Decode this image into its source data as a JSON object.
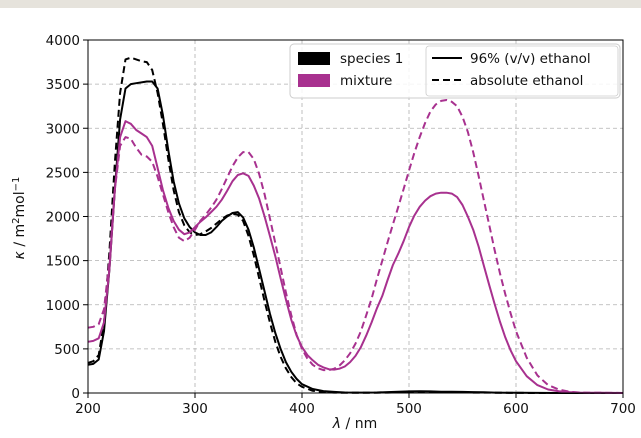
{
  "chart_data": {
    "type": "line",
    "xlabel_symbol": "λ",
    "xlabel_unit": " / nm",
    "ylabel_symbol": "κ",
    "ylabel_unit_prefix": " / m",
    "ylabel_unit_sup1": "2",
    "ylabel_unit_mid": "mol",
    "ylabel_unit_sup2": "−1",
    "xlim": [
      200,
      700
    ],
    "ylim": [
      0,
      4000
    ],
    "xticks": [
      200,
      300,
      400,
      500,
      600,
      700
    ],
    "yticks": [
      0,
      500,
      1000,
      1500,
      2000,
      2500,
      3000,
      3500,
      4000
    ],
    "grid": true,
    "legend_placement": "top-right",
    "legend": {
      "colors": [
        {
          "label": "species 1",
          "color": "#000000"
        },
        {
          "label": "mixture",
          "color": "#a8318f"
        }
      ],
      "styles": [
        {
          "label": "96% (v/v) ethanol",
          "dash": "solid"
        },
        {
          "label": "absolute ethanol",
          "dash": "dashed"
        }
      ]
    },
    "series": [
      {
        "color": "#000000",
        "dash": "solid",
        "x": [
          200,
          205,
          210,
          215,
          220,
          225,
          230,
          235,
          240,
          245,
          250,
          255,
          260,
          265,
          270,
          275,
          280,
          285,
          290,
          295,
          300,
          305,
          310,
          315,
          320,
          325,
          330,
          335,
          340,
          345,
          350,
          355,
          360,
          365,
          370,
          375,
          380,
          385,
          390,
          395,
          400,
          410,
          420,
          430,
          440,
          450,
          460,
          470,
          480,
          490,
          500,
          510,
          520,
          530,
          540,
          550,
          560,
          570,
          580,
          590,
          600,
          620,
          640,
          660,
          680,
          700
        ],
        "y": [
          320,
          330,
          380,
          700,
          1400,
          2300,
          3100,
          3450,
          3500,
          3510,
          3520,
          3530,
          3530,
          3450,
          3150,
          2750,
          2400,
          2150,
          1980,
          1880,
          1820,
          1790,
          1790,
          1820,
          1880,
          1950,
          2000,
          2040,
          2050,
          1990,
          1850,
          1650,
          1400,
          1150,
          900,
          680,
          500,
          350,
          240,
          160,
          100,
          45,
          22,
          12,
          6,
          4,
          4,
          6,
          10,
          14,
          18,
          20,
          18,
          14,
          14,
          12,
          10,
          8,
          5,
          3,
          2,
          1,
          0,
          0,
          0,
          0
        ]
      },
      {
        "color": "#000000",
        "dash": "dashed",
        "x": [
          200,
          205,
          210,
          215,
          220,
          225,
          230,
          235,
          240,
          245,
          250,
          255,
          260,
          265,
          270,
          275,
          280,
          285,
          290,
          295,
          300,
          305,
          310,
          315,
          320,
          325,
          330,
          335,
          340,
          345,
          350,
          355,
          360,
          365,
          370,
          375,
          380,
          385,
          390,
          395,
          400,
          410,
          420,
          430,
          440,
          450,
          460,
          470,
          480,
          490,
          500,
          510,
          520,
          530,
          540,
          550,
          560,
          570,
          580,
          590,
          600,
          620,
          640,
          660,
          680,
          700
        ],
        "y": [
          340,
          360,
          430,
          800,
          1600,
          2600,
          3400,
          3780,
          3800,
          3780,
          3760,
          3750,
          3660,
          3400,
          3050,
          2650,
          2300,
          2050,
          1900,
          1820,
          1790,
          1800,
          1830,
          1870,
          1920,
          1970,
          2010,
          2030,
          2020,
          1950,
          1780,
          1560,
          1300,
          1040,
          800,
          580,
          410,
          280,
          180,
          110,
          70,
          25,
          10,
          5,
          2,
          2,
          2,
          3,
          5,
          8,
          10,
          12,
          10,
          8,
          8,
          6,
          5,
          4,
          3,
          2,
          1,
          0,
          0,
          0,
          0,
          0
        ]
      },
      {
        "color": "#a8318f",
        "dash": "solid",
        "x": [
          200,
          205,
          210,
          215,
          220,
          225,
          230,
          235,
          240,
          245,
          250,
          255,
          260,
          265,
          270,
          275,
          280,
          285,
          290,
          295,
          300,
          305,
          310,
          315,
          320,
          325,
          330,
          335,
          340,
          345,
          350,
          355,
          360,
          365,
          370,
          375,
          380,
          385,
          390,
          395,
          400,
          405,
          410,
          415,
          420,
          425,
          430,
          435,
          440,
          445,
          450,
          455,
          460,
          465,
          470,
          475,
          480,
          485,
          490,
          495,
          500,
          505,
          510,
          515,
          520,
          525,
          530,
          535,
          540,
          545,
          550,
          555,
          560,
          565,
          570,
          575,
          580,
          585,
          590,
          595,
          600,
          610,
          620,
          630,
          640,
          650,
          660,
          680,
          700
        ],
        "y": [
          580,
          590,
          620,
          800,
          1400,
          2300,
          2900,
          3080,
          3050,
          2980,
          2940,
          2900,
          2800,
          2550,
          2300,
          2100,
          1950,
          1850,
          1800,
          1820,
          1880,
          1940,
          1990,
          2050,
          2110,
          2190,
          2290,
          2400,
          2470,
          2490,
          2460,
          2350,
          2200,
          2000,
          1780,
          1550,
          1300,
          1060,
          830,
          650,
          520,
          430,
          370,
          320,
          290,
          270,
          265,
          275,
          300,
          350,
          420,
          520,
          650,
          800,
          960,
          1100,
          1280,
          1450,
          1580,
          1720,
          1880,
          2010,
          2110,
          2180,
          2230,
          2260,
          2270,
          2270,
          2260,
          2220,
          2130,
          2000,
          1850,
          1660,
          1440,
          1220,
          1010,
          810,
          630,
          480,
          360,
          190,
          90,
          40,
          20,
          10,
          5,
          2,
          0
        ]
      },
      {
        "color": "#a8318f",
        "dash": "dashed",
        "x": [
          200,
          205,
          210,
          215,
          220,
          225,
          230,
          235,
          240,
          245,
          250,
          255,
          260,
          265,
          270,
          275,
          280,
          285,
          290,
          295,
          300,
          305,
          310,
          315,
          320,
          325,
          330,
          335,
          340,
          345,
          350,
          355,
          360,
          365,
          370,
          375,
          380,
          385,
          390,
          395,
          400,
          405,
          410,
          415,
          420,
          425,
          430,
          435,
          440,
          445,
          450,
          455,
          460,
          465,
          470,
          475,
          480,
          485,
          490,
          495,
          500,
          505,
          510,
          515,
          520,
          525,
          530,
          535,
          540,
          545,
          550,
          555,
          560,
          565,
          570,
          575,
          580,
          585,
          590,
          595,
          600,
          610,
          620,
          630,
          640,
          650,
          660,
          680,
          700
        ],
        "y": [
          740,
          750,
          780,
          950,
          1500,
          2300,
          2800,
          2900,
          2880,
          2780,
          2700,
          2680,
          2620,
          2450,
          2250,
          2050,
          1880,
          1760,
          1720,
          1760,
          1850,
          1950,
          2020,
          2100,
          2190,
          2310,
          2440,
          2570,
          2670,
          2730,
          2730,
          2650,
          2480,
          2250,
          1980,
          1700,
          1420,
          1140,
          880,
          660,
          500,
          390,
          320,
          280,
          260,
          260,
          275,
          310,
          370,
          450,
          560,
          700,
          880,
          1070,
          1290,
          1500,
          1710,
          1910,
          2110,
          2310,
          2520,
          2720,
          2900,
          3060,
          3190,
          3270,
          3310,
          3320,
          3300,
          3250,
          3130,
          2960,
          2730,
          2460,
          2180,
          1900,
          1620,
          1360,
          1120,
          900,
          700,
          400,
          200,
          90,
          40,
          15,
          5,
          2,
          0
        ]
      }
    ]
  }
}
